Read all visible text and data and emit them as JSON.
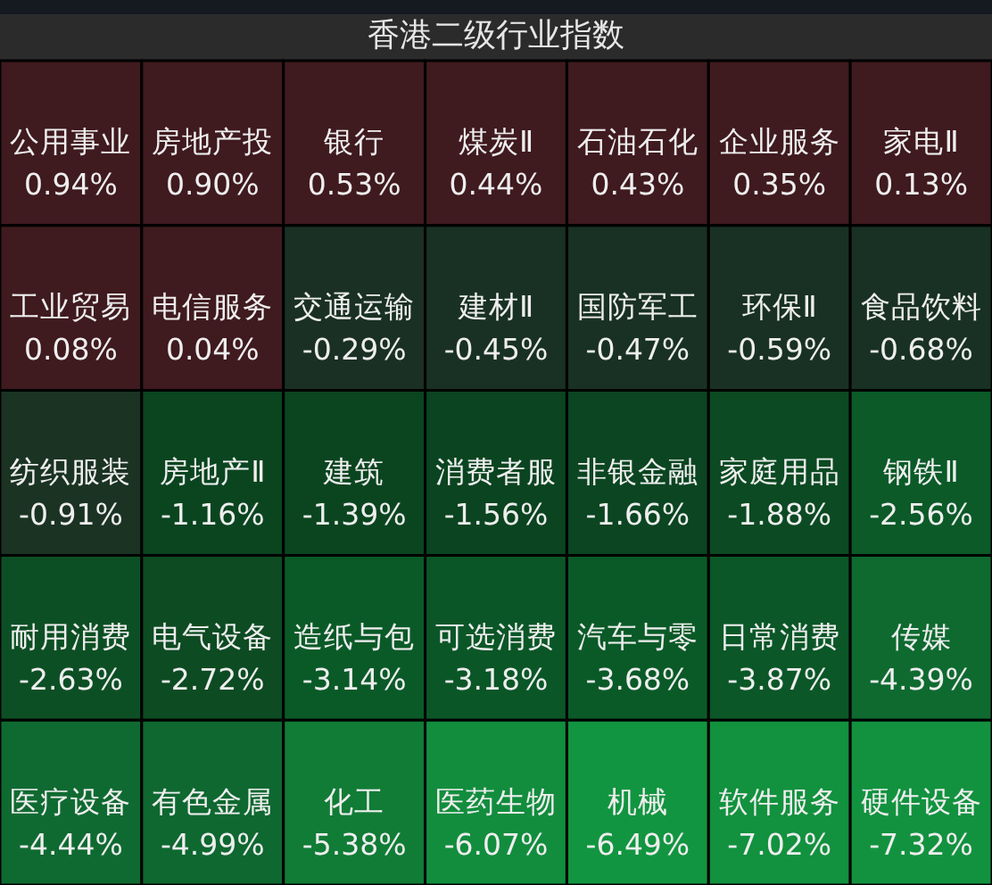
{
  "chart_data": {
    "type": "other",
    "title": "香港二级行业指数",
    "categories": [
      "公用事业",
      "房地产投",
      "银行",
      "煤炭Ⅱ",
      "石油石化",
      "企业服务",
      "家电Ⅱ",
      "工业贸易",
      "电信服务",
      "交通运输",
      "建材Ⅱ",
      "国防军工",
      "环保Ⅱ",
      "食品饮料",
      "纺织服装",
      "房地产Ⅱ",
      "建筑",
      "消费者服",
      "非银金融",
      "家庭用品",
      "钢铁Ⅱ",
      "耐用消费",
      "电气设备",
      "造纸与包",
      "可选消费",
      "汽车与零",
      "日常消费",
      "传媒",
      "医疗设备",
      "有色金属",
      "化工",
      "医药生物",
      "机械",
      "软件服务",
      "硬件设备"
    ],
    "values": [
      0.94,
      0.9,
      0.53,
      0.44,
      0.43,
      0.35,
      0.13,
      0.08,
      0.04,
      -0.29,
      -0.45,
      -0.47,
      -0.59,
      -0.68,
      -0.91,
      -1.16,
      -1.39,
      -1.56,
      -1.66,
      -1.88,
      -2.56,
      -2.63,
      -2.72,
      -3.14,
      -3.18,
      -3.68,
      -3.87,
      -4.39,
      -4.44,
      -4.99,
      -5.38,
      -6.07,
      -6.49,
      -7.02,
      -7.32
    ],
    "value_labels": [
      "0.94%",
      "0.90%",
      "0.53%",
      "0.44%",
      "0.43%",
      "0.35%",
      "0.13%",
      "0.08%",
      "0.04%",
      "-0.29%",
      "-0.45%",
      "-0.47%",
      "-0.59%",
      "-0.68%",
      "-0.91%",
      "-1.16%",
      "-1.39%",
      "-1.56%",
      "-1.66%",
      "-1.88%",
      "-2.56%",
      "-2.63%",
      "-2.72%",
      "-3.14%",
      "-3.18%",
      "-3.68%",
      "-3.87%",
      "-4.39%",
      "-4.44%",
      "-4.99%",
      "-5.38%",
      "-6.07%",
      "-6.49%",
      "-7.02%",
      "-7.32%"
    ],
    "colors": [
      "#3f1a1f",
      "#3f1a1f",
      "#3f1a1f",
      "#3f1a1f",
      "#3f1a1f",
      "#3f1a1f",
      "#3f1a1f",
      "#3f1a1f",
      "#3f1a1f",
      "#1a3024",
      "#193124",
      "#193124",
      "#193124",
      "#193124",
      "#1b3323",
      "#0a4520",
      "#0b4520",
      "#0b4420",
      "#0b4521",
      "#0b4a22",
      "#0b5a28",
      "#0d4f24",
      "#0d4b22",
      "#0a5a28",
      "#0b5627",
      "#0a5a27",
      "#0b5727",
      "#0f6a30",
      "#0f6a31",
      "#0e6830",
      "#117c36",
      "#128d3d",
      "#129540",
      "#12913e",
      "#12923f"
    ]
  }
}
